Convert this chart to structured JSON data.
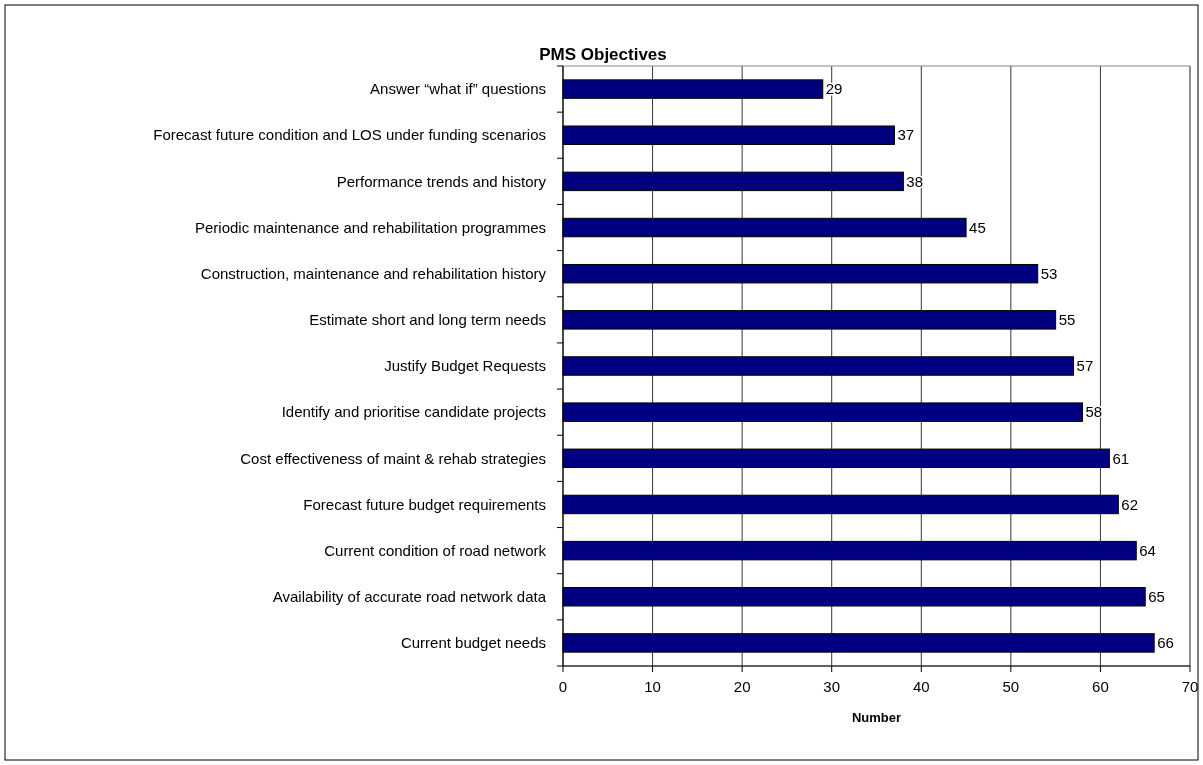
{
  "chart_data": {
    "type": "bar",
    "orientation": "horizontal",
    "title": "PMS Objectives",
    "xlabel": "Number",
    "categories": [
      "Answer “what if” questions",
      "Forecast future condition and LOS under funding scenarios",
      "Performance trends and history",
      "Periodic maintenance and rehabilitation programmes",
      "Construction, maintenance and rehabilitation history",
      "Estimate short and long term needs",
      "Justify Budget Requests",
      "Identify and prioritise candidate projects",
      "Cost effectiveness of maint & rehab strategies",
      "Forecast future budget requirements",
      "Current condition of road network",
      "Availability of accurate road network data",
      "Current budget needs"
    ],
    "values": [
      29,
      37,
      38,
      45,
      53,
      55,
      57,
      58,
      61,
      62,
      64,
      65,
      66
    ],
    "color": "#000080",
    "xlim": [
      0,
      70
    ],
    "xticks": [
      0,
      10,
      20,
      30,
      40,
      50,
      60,
      70
    ],
    "grid": "x",
    "data_labels": true
  }
}
